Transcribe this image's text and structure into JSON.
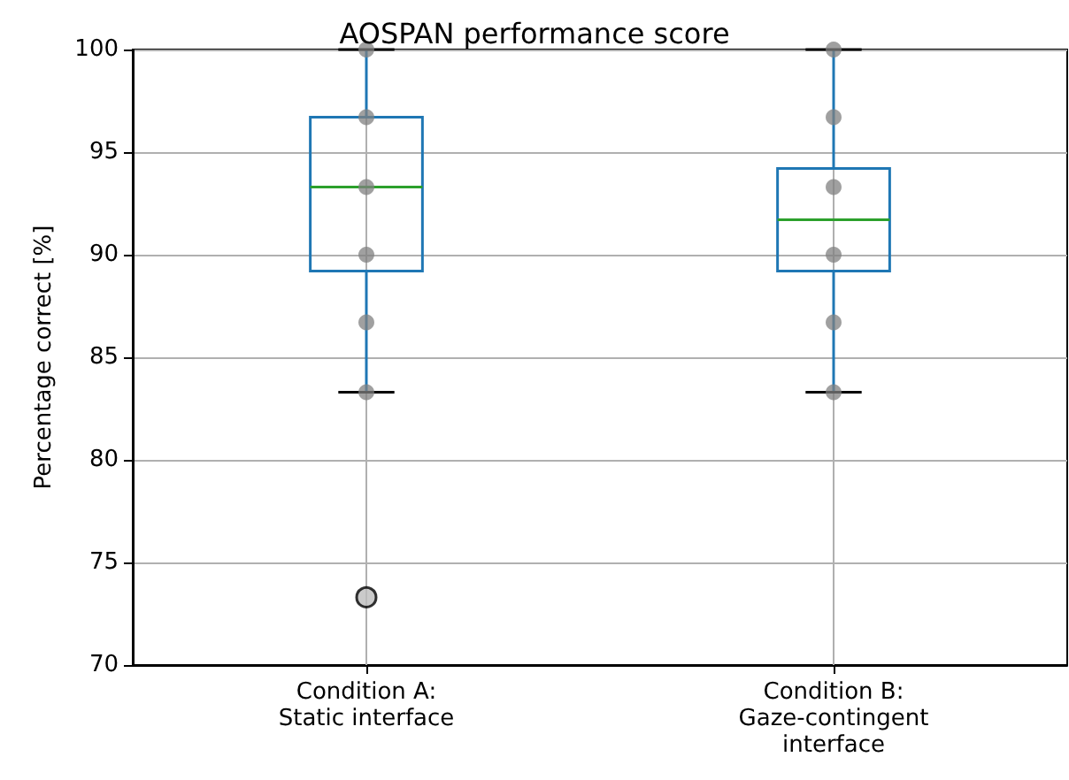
{
  "chart_data": {
    "type": "box",
    "title": "AOSPAN performance score",
    "ylabel": "Percentage correct [%]",
    "categories": [
      "Condition A:\nStatic interface",
      "Condition B:\nGaze-contingent\ninterface"
    ],
    "ylim": [
      70,
      100
    ],
    "yticks": [
      70,
      75,
      80,
      85,
      90,
      95,
      100
    ],
    "grid": true,
    "series": [
      {
        "color": "#1f77b4",
        "boxes": [
          {
            "low": 83.3,
            "q1": 89.2,
            "median": 93.3,
            "q3": 96.7,
            "high": 100,
            "outliers": [
              73.3
            ]
          },
          {
            "low": 83.3,
            "q1": 89.2,
            "median": 91.7,
            "q3": 94.2,
            "high": 100
          }
        ]
      },
      {
        "type": "scatter",
        "color": "#808080",
        "x": [
          "Condition A:\nStatic interface",
          "Condition A:\nStatic interface",
          "Condition A:\nStatic interface",
          "Condition A:\nStatic interface",
          "Condition A:\nStatic interface",
          "Condition A:\nStatic interface",
          "Condition B:\nGaze-contingent\ninterface",
          "Condition B:\nGaze-contingent\ninterface",
          "Condition B:\nGaze-contingent\ninterface",
          "Condition B:\nGaze-contingent\ninterface",
          "Condition B:\nGaze-contingent\ninterface",
          "Condition B:\nGaze-contingent\ninterface"
        ],
        "values": [
          100,
          96.7,
          93.3,
          90,
          86.7,
          83.3,
          100,
          96.7,
          93.3,
          90,
          86.7,
          83.3
        ]
      }
    ]
  }
}
